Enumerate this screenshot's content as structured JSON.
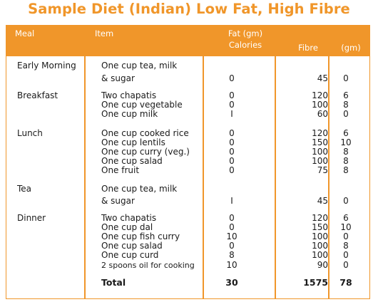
{
  "title": "Sample Diet (Indian) Low Fat, High Fibre",
  "headers": {
    "meal": "Meal",
    "item": "Item",
    "fat_line1": "Fat (gm)",
    "fat_line2": "Calories",
    "fibre": "Fibre",
    "gm": "(gm)"
  },
  "meals": {
    "early_morning": "Early Morning",
    "breakfast": "Breakfast",
    "lunch": "Lunch",
    "tea": "Tea",
    "dinner": "Dinner"
  },
  "rows": [
    {
      "item": "One cup tea, milk",
      "fat": "",
      "fibre": "",
      "gm": ""
    },
    {
      "item": "& sugar",
      "fat": "0",
      "fibre": "45",
      "gm": "0"
    },
    {
      "item": "Two chapatis",
      "fat": "0",
      "fibre": "120",
      "gm": "6"
    },
    {
      "item": "One cup vegetable",
      "fat": "0",
      "fibre": "100",
      "gm": "8"
    },
    {
      "item": "One cup milk",
      "fat": "I",
      "fibre": "60",
      "gm": "0"
    },
    {
      "item": "One cup cooked rice",
      "fat": "0",
      "fibre": "120",
      "gm": "6"
    },
    {
      "item": "One cup lentils",
      "fat": "0",
      "fibre": "150",
      "gm": "10"
    },
    {
      "item": "One cup curry (veg.)",
      "fat": "0",
      "fibre": "100",
      "gm": "8"
    },
    {
      "item": "One cup salad",
      "fat": "0",
      "fibre": "100",
      "gm": "8"
    },
    {
      "item": "One fruit",
      "fat": "0",
      "fibre": "75",
      "gm": "8"
    },
    {
      "item": "One cup tea, milk",
      "fat": "",
      "fibre": "",
      "gm": ""
    },
    {
      "item": "& sugar",
      "fat": "I",
      "fibre": "45",
      "gm": "0"
    },
    {
      "item": "Two chapatis",
      "fat": "0",
      "fibre": "120",
      "gm": "6"
    },
    {
      "item": "One cup dal",
      "fat": "0",
      "fibre": "150",
      "gm": "10"
    },
    {
      "item": "One cup fish curry",
      "fat": "10",
      "fibre": "100",
      "gm": "0"
    },
    {
      "item": "One cup salad",
      "fat": "0",
      "fibre": "100",
      "gm": "8"
    },
    {
      "item": "One cup curd",
      "fat": "8",
      "fibre": "100",
      "gm": "0"
    },
    {
      "item": "2 spoons oil for cooking",
      "fat": "10",
      "fibre": "90",
      "gm": "0"
    }
  ],
  "total": {
    "label": "Total",
    "fat": "30",
    "fibre": "1575",
    "gm": "78"
  }
}
